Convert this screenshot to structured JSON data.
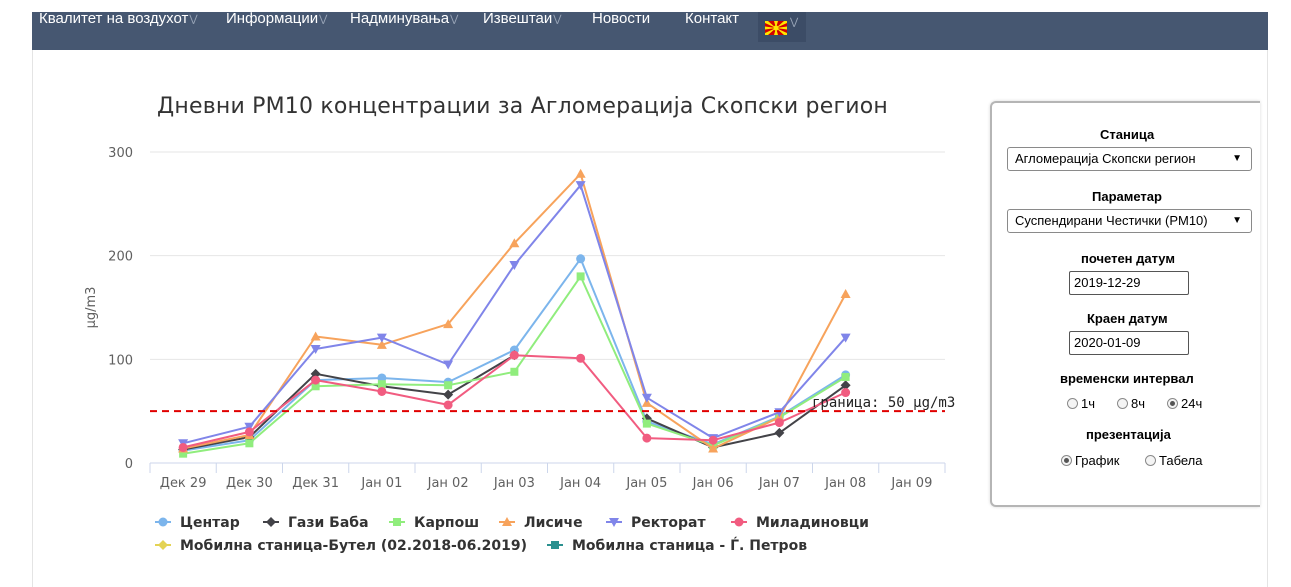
{
  "nav": {
    "items": [
      {
        "label": "Квалитет на воздухот",
        "chevron": true
      },
      {
        "label": "Информации",
        "chevron": true
      },
      {
        "label": "Надминувања",
        "chevron": true
      },
      {
        "label": "Извештаи",
        "chevron": true
      },
      {
        "label": "Новости",
        "chevron": false
      },
      {
        "label": "Контакт",
        "chevron": false
      }
    ],
    "language_flag": "macedonia-flag-icon",
    "bar_color": "#465771"
  },
  "chart_data": {
    "type": "line",
    "title": "Дневни PM10 концентрации за Агломерација Скопски регион",
    "ylabel": "µg/m3",
    "xlabel": "",
    "ylim": [
      0,
      300
    ],
    "yticks": [
      0,
      100,
      200,
      300
    ],
    "categories": [
      "Дек 29",
      "Дек 30",
      "Дек 31",
      "Јан 01",
      "Јан 02",
      "Јан 03",
      "Јан 04",
      "Јан 05",
      "Јан 06",
      "Јан 07",
      "Јан 08",
      "Јан 09"
    ],
    "limit_line": {
      "value": 50,
      "label": "граница: 50 µg/m3",
      "color": "#e00000"
    },
    "grid": true,
    "legend_position": "bottom",
    "series": [
      {
        "name": "Центар",
        "color": "#7cb5ec",
        "marker": "circle",
        "values": [
          12,
          22,
          80,
          82,
          78,
          109,
          197,
          40,
          18,
          45,
          85,
          null
        ]
      },
      {
        "name": "Гази Баба",
        "color": "#434348",
        "marker": "diamond",
        "values": [
          13,
          25,
          86,
          74,
          66,
          104,
          null,
          43,
          15,
          29,
          75,
          null
        ]
      },
      {
        "name": "Карпош",
        "color": "#90ed7d",
        "marker": "square",
        "values": [
          9,
          19,
          74,
          76,
          75,
          88,
          180,
          38,
          17,
          44,
          83,
          null
        ]
      },
      {
        "name": "Лисиче",
        "color": "#f7a35c",
        "marker": "triangle",
        "values": [
          14,
          27,
          122,
          114,
          134,
          212,
          279,
          58,
          14,
          44,
          163,
          null
        ]
      },
      {
        "name": "Ректорат",
        "color": "#8085e9",
        "marker": "triangle-down",
        "values": [
          19,
          35,
          110,
          121,
          95,
          191,
          268,
          63,
          24,
          49,
          121,
          null
        ]
      },
      {
        "name": "Миладиновци",
        "color": "#f15c80",
        "marker": "circle",
        "values": [
          15,
          30,
          80,
          69,
          56,
          104,
          101,
          24,
          22,
          39,
          68,
          null
        ]
      },
      {
        "name": "Мобилна станица-Бутел (02.2018-06.2019)",
        "color": "#e4d354",
        "marker": "diamond",
        "values": [
          null,
          null,
          null,
          null,
          null,
          null,
          null,
          null,
          null,
          null,
          null,
          null
        ]
      },
      {
        "name": "Мобилна станица - Ѓ. Петров",
        "color": "#2b908f",
        "marker": "square",
        "values": [
          null,
          null,
          null,
          null,
          null,
          null,
          null,
          null,
          null,
          null,
          null,
          null
        ]
      }
    ]
  },
  "panel": {
    "station_label": "Станица",
    "station_value": "Агломерација Скопски регион",
    "parameter_label": "Параметар",
    "parameter_value": "Суспендирани Честички (PM10)",
    "start_date_label": "почетен датум",
    "start_date_value": "2019-12-29",
    "end_date_label": "Краен датум",
    "end_date_value": "2020-01-09",
    "interval_label": "временски интервал",
    "interval_options": [
      "1ч",
      "8ч",
      "24ч"
    ],
    "interval_selected": "24ч",
    "presentation_label": "презентација",
    "presentation_options": [
      "График",
      "Табела"
    ],
    "presentation_selected": "График"
  }
}
